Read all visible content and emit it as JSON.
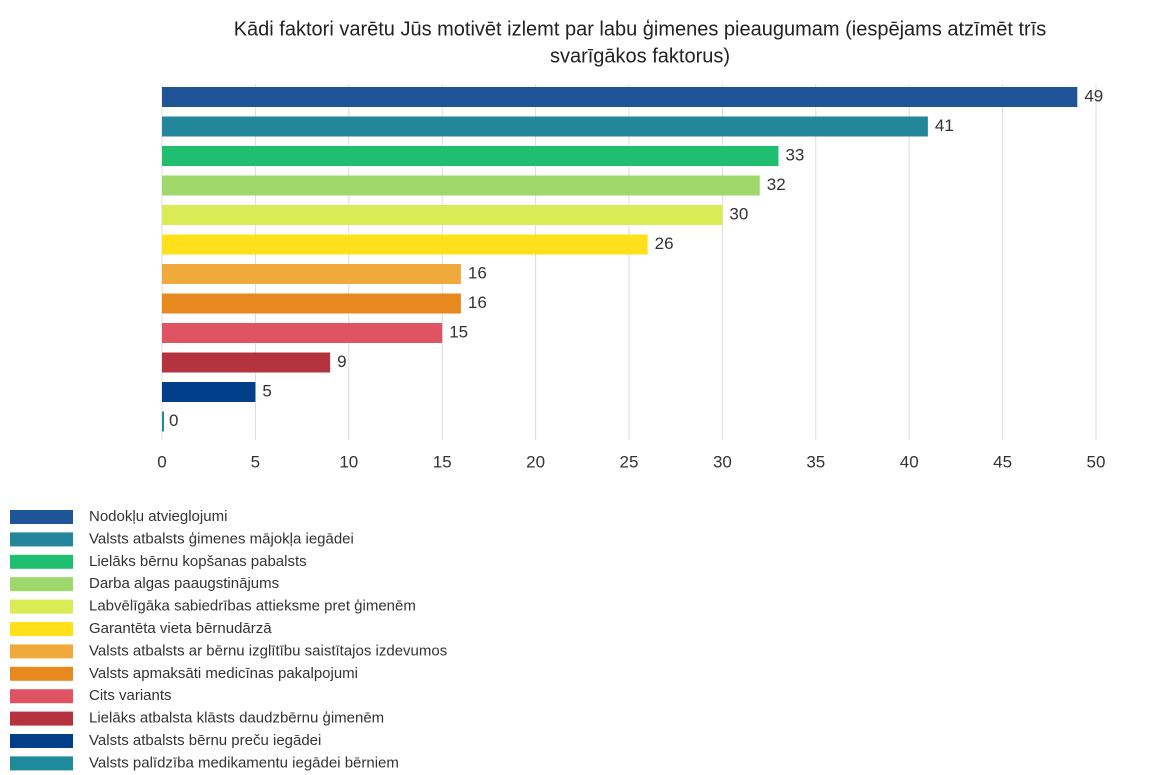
{
  "chart_data": {
    "type": "bar",
    "orientation": "horizontal",
    "title": [
      "Kādi faktori varētu Jūs motivēt izlemt par labu ģimenes pieaugumam (iespējams atzīmēt trīs",
      "svarīgākos faktorus)"
    ],
    "categories": [
      "Nodokļu atvieglojumi",
      "Valsts atbalsts ģimenes mājokļa iegādei",
      "Lielāks bērnu kopšanas pabalsts",
      "Darba algas paaugstinājums",
      "Labvēlīgāka sabiedrības attieksme pret ģimenēm",
      "Garantēta vieta bērnudārzā",
      "Valsts atbalsts ar bērnu izglītību saistītajos izdevumos",
      "Valsts apmaksāti medicīnas pakalpojumi",
      "Cits variants",
      "Lielāks atbalsta klāsts daudzbērnu ģimenēm",
      "Valsts atbalsts bērnu preču iegādei",
      "Valsts palīdzība medikamentu iegādei bērniem"
    ],
    "values": [
      49,
      41,
      33,
      32,
      30,
      26,
      16,
      16,
      15,
      9,
      5,
      0
    ],
    "colors": [
      "#1f5596",
      "#23869a",
      "#1fbf6f",
      "#9fd86a",
      "#d9eb55",
      "#ffe01a",
      "#f0aa3c",
      "#e8891f",
      "#e05363",
      "#b5323f",
      "#023f8a",
      "#1f8a9c"
    ],
    "xlim": [
      0,
      50
    ],
    "xticks": [
      0,
      5,
      10,
      15,
      20,
      25,
      30,
      35,
      40,
      45,
      50
    ],
    "grid": true,
    "legend": "bottom"
  }
}
